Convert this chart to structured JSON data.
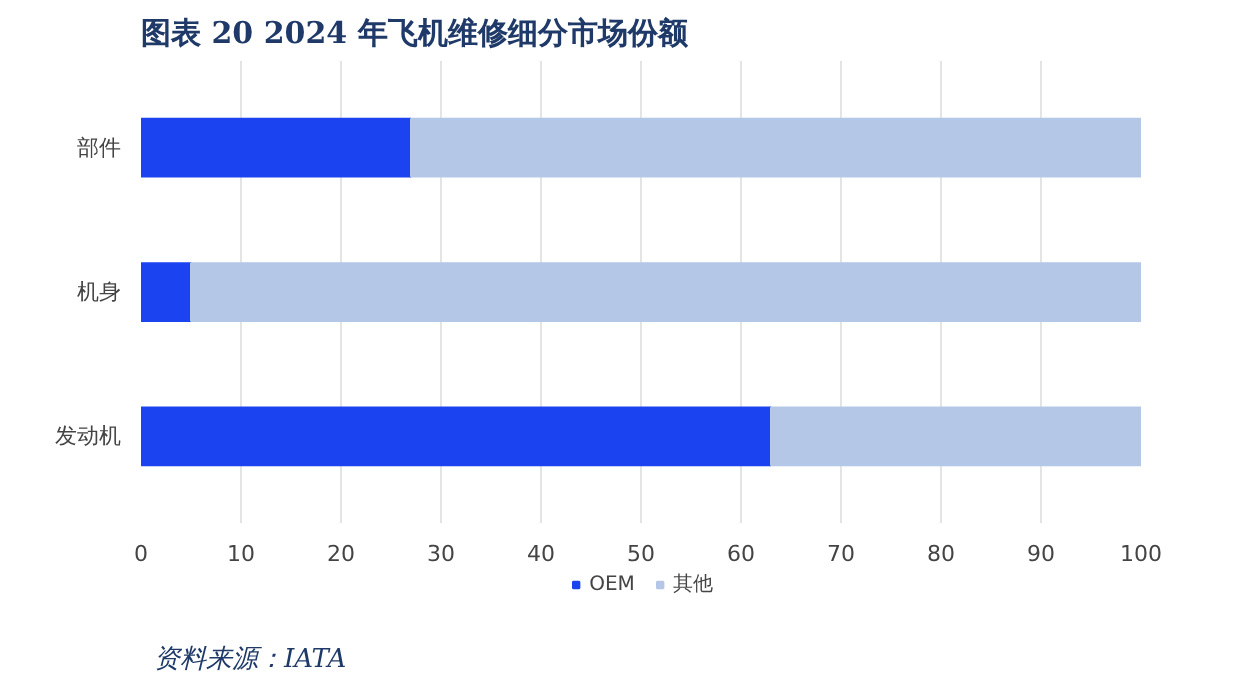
{
  "chart_data": {
    "type": "bar",
    "orientation": "horizontal",
    "stacked": true,
    "title": "图表 20   2024 年飞机维修细分市场份额",
    "categories": [
      "部件",
      "机身",
      "发动机"
    ],
    "series": [
      {
        "name": "OEM",
        "color": "#1c43f0",
        "values": [
          27,
          5,
          63
        ]
      },
      {
        "name": "其他",
        "color": "#b4c7e7",
        "values": [
          73,
          95,
          37
        ]
      }
    ],
    "xlim": [
      0,
      100
    ],
    "xticks": [
      0,
      10,
      20,
      30,
      40,
      50,
      60,
      70,
      80,
      90,
      100
    ],
    "grid": "x",
    "legend": "bottom",
    "annotations": [
      "资料来源：IATA"
    ]
  }
}
